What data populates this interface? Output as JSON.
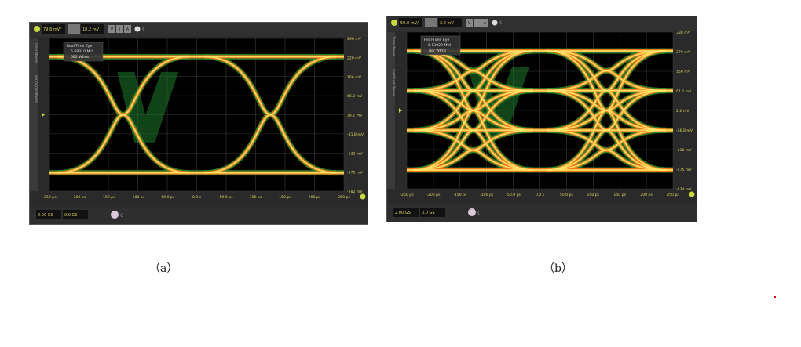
{
  "figures": [
    {
      "id": "a",
      "caption": "（a）",
      "scale": "79.8 mV/",
      "offset": "18.2 mV",
      "buttons": [
        "V",
        "I",
        "A"
      ],
      "tooltip": [
        "Real-Time Eye",
        "5.68310 MUI",
        "682 Wfms"
      ],
      "side_tabs": [
        "Timer Waves",
        "Sort/Scroll Waves"
      ],
      "y_labels": [
        "296 mV",
        "220 mV",
        "166 mV",
        "66.2 mV",
        "18.2 mV",
        "-31.8 mV",
        "-132 mV",
        "-175 mV",
        "-282 mV"
      ],
      "x_labels": [
        "-250 ps",
        "-200 ps",
        "-150 ps",
        "-100 ps",
        "-50.0 ps",
        "0.0 s",
        "50.0 ps",
        "100 ps",
        "150 ps",
        "200 ps",
        "250 ps"
      ],
      "bottom_fields": [
        "2.00 GS",
        "0.0 GS"
      ],
      "eye_levels": 2
    },
    {
      "id": "b",
      "caption": "（b）",
      "scale": "59.8 mV/",
      "offset": "2.2 mV",
      "buttons": [
        "V",
        "I",
        "A"
      ],
      "tooltip": [
        "Real-Time Eye",
        "6.13029 MUI",
        "782 Wfms"
      ],
      "side_tabs": [
        "Timer Waves",
        "Sort/Scroll Waves"
      ],
      "y_labels": [
        "338 mV",
        "279 mV",
        "159 mV",
        "61.2 mV",
        "2.2 mV",
        "-56.8 mV",
        "-116 mV",
        "-175 mV",
        "-234 mV"
      ],
      "x_labels": [
        "-250 ps",
        "-200 ps",
        "-150 ps",
        "-100 ps",
        "-50.0 ps",
        "0.0 s",
        "50.0 ps",
        "100 ps",
        "150 ps",
        "200 ps",
        "250 ps"
      ],
      "bottom_fields": [
        "2.00 GS",
        "0.0 GS"
      ],
      "eye_levels": 4
    }
  ],
  "colors": {
    "trace_outer": "#2e8b2e",
    "trace_mid": "#ff7a1a",
    "trace_core": "#ffe66a",
    "grid": "#3a3a3a",
    "label": "#d8d060",
    "watermark": "#1e7a2a"
  }
}
